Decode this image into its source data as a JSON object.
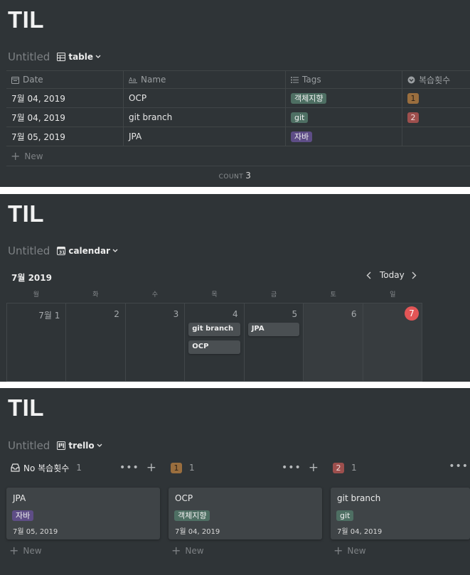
{
  "page_title": "TIL",
  "db_title": "Untitled",
  "table_view": {
    "view_name": "table",
    "columns": [
      "Date",
      "Name",
      "Tags",
      "복습횟수"
    ],
    "rows": [
      {
        "date": "7월 04, 2019",
        "name": "OCP",
        "tag": "객체지향",
        "count": "1"
      },
      {
        "date": "7월 04, 2019",
        "name": "git branch",
        "tag": "git",
        "count": "2"
      },
      {
        "date": "7월 05, 2019",
        "name": "JPA",
        "tag": "자바",
        "count": ""
      }
    ],
    "new_label": "New",
    "count_label": "COUNT",
    "count_value": "3"
  },
  "calendar_view": {
    "view_name": "calendar",
    "month": "7월 2019",
    "today_label": "Today",
    "weekdays": [
      "월",
      "화",
      "수",
      "목",
      "금",
      "토",
      "일"
    ],
    "days": [
      "7월 1",
      "2",
      "3",
      "4",
      "5",
      "6",
      "7"
    ],
    "events": {
      "day4": [
        "git branch",
        "OCP"
      ],
      "day5": [
        "JPA"
      ]
    }
  },
  "board_view": {
    "view_name": "trello",
    "columns": [
      {
        "label": "No 복습횟수",
        "count": "1",
        "card": {
          "title": "JPA",
          "tag": "자바",
          "date": "7월 05, 2019"
        }
      },
      {
        "label": "1",
        "count": "1",
        "card": {
          "title": "OCP",
          "tag": "객체지향",
          "date": "7월 04, 2019"
        }
      },
      {
        "label": "2",
        "count": "1",
        "card": {
          "title": "git branch",
          "tag": "git",
          "date": "7월 04, 2019"
        }
      }
    ],
    "new_label": "New"
  },
  "colors": {
    "background": "#2f3437",
    "tag_green": "#4e6f63",
    "tag_purple": "#5e4d86",
    "num_brown": "#9a6e3e",
    "num_red": "#9d4f4d",
    "today_red": "#e25556"
  },
  "icons": [
    "table-icon",
    "calendar-icon",
    "board-icon",
    "chevron-down-icon",
    "calendar-property-icon",
    "text-property-icon",
    "list-property-icon",
    "select-property-icon",
    "inbox-icon",
    "plus-icon",
    "more-icon",
    "chevron-left-icon",
    "chevron-right-icon"
  ]
}
